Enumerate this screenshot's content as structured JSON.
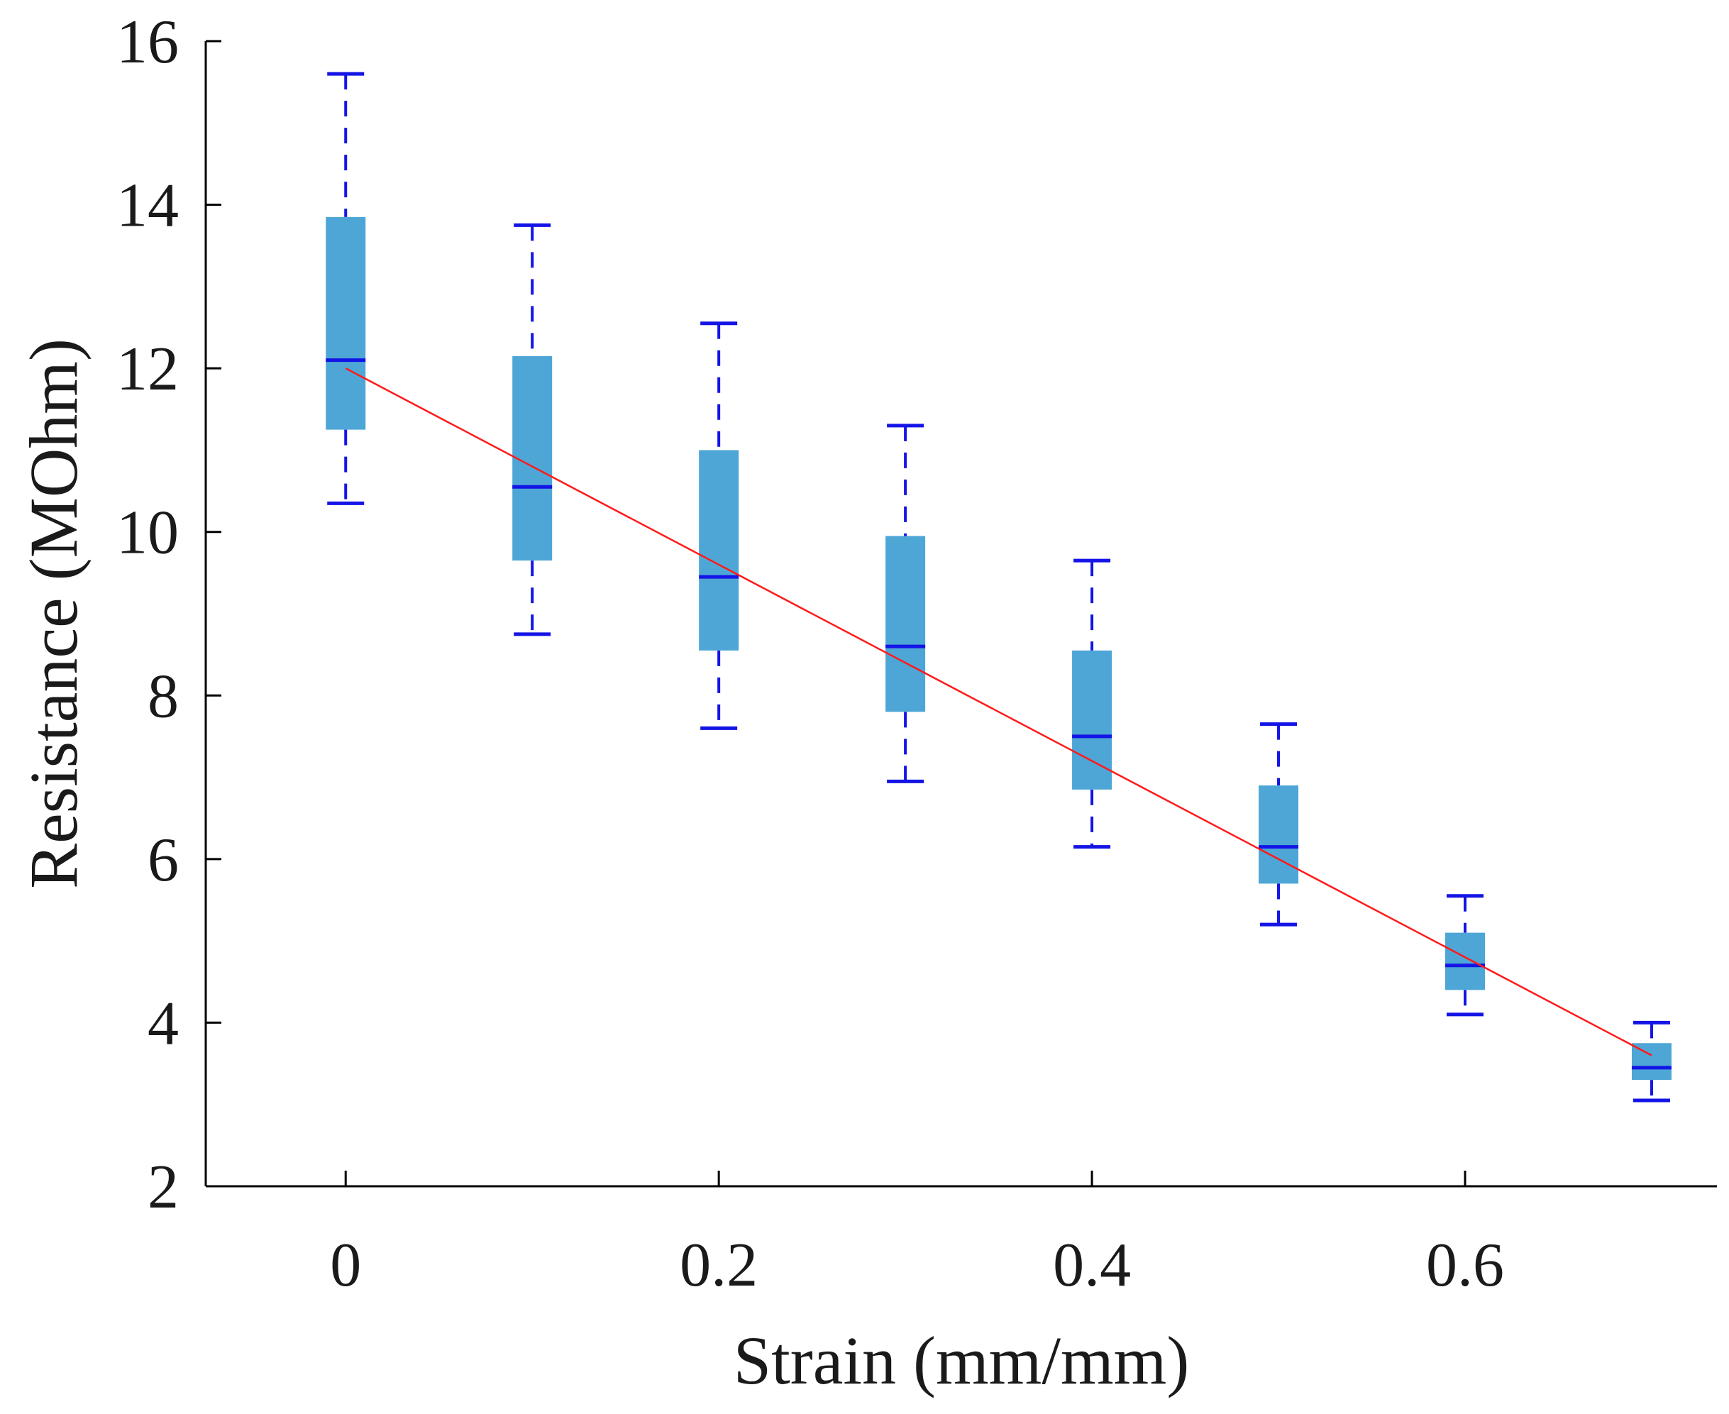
{
  "chart_data": {
    "type": "box",
    "title": "",
    "xlabel": "Strain (mm/mm)",
    "ylabel": "Resistance (MOhm)",
    "xlim": [
      -0.075,
      0.735
    ],
    "ylim": [
      2,
      16
    ],
    "xticks": [
      0,
      0.2,
      0.4,
      0.6
    ],
    "xtick_labels": [
      "0",
      "0.2",
      "0.4",
      "0.6"
    ],
    "yticks": [
      2,
      4,
      6,
      8,
      10,
      12,
      14,
      16
    ],
    "ytick_labels": [
      "2",
      "4",
      "6",
      "8",
      "10",
      "12",
      "14",
      "16"
    ],
    "grid": false,
    "boxes": [
      {
        "x": 0.0,
        "whisker_low": 10.35,
        "q1": 11.25,
        "median": 12.1,
        "q3": 13.85,
        "whisker_high": 15.6
      },
      {
        "x": 0.1,
        "whisker_low": 8.75,
        "q1": 9.65,
        "median": 10.55,
        "q3": 12.15,
        "whisker_high": 13.75
      },
      {
        "x": 0.2,
        "whisker_low": 7.6,
        "q1": 8.55,
        "median": 9.45,
        "q3": 11.0,
        "whisker_high": 12.55
      },
      {
        "x": 0.3,
        "whisker_low": 6.95,
        "q1": 7.8,
        "median": 8.6,
        "q3": 9.95,
        "whisker_high": 11.3
      },
      {
        "x": 0.4,
        "whisker_low": 6.15,
        "q1": 6.85,
        "median": 7.5,
        "q3": 8.55,
        "whisker_high": 9.65
      },
      {
        "x": 0.5,
        "whisker_low": 5.2,
        "q1": 5.7,
        "median": 6.15,
        "q3": 6.9,
        "whisker_high": 7.65
      },
      {
        "x": 0.6,
        "whisker_low": 4.1,
        "q1": 4.4,
        "median": 4.7,
        "q3": 5.1,
        "whisker_high": 5.55
      },
      {
        "x": 0.7,
        "whisker_low": 3.05,
        "q1": 3.3,
        "median": 3.45,
        "q3": 3.75,
        "whisker_high": 4.0
      }
    ],
    "fit_line": {
      "x": [
        0.0,
        0.7
      ],
      "y": [
        12.0,
        3.6
      ]
    },
    "colors": {
      "box_fill": "#4ea6d6",
      "whisker": "#1414e6",
      "median": "#1414e6",
      "fit_line": "#ff1a1a",
      "axis": "#000000"
    }
  }
}
